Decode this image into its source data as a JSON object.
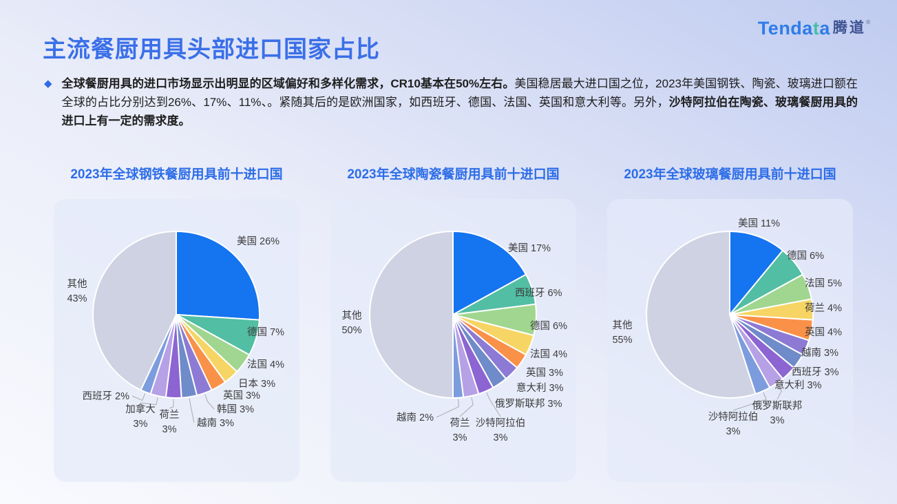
{
  "logo": {
    "brand_en_prefix": "Tenda",
    "brand_en_accent": "t",
    "brand_en_suffix": "a",
    "brand_cn": "腾道",
    "registered_mark": "®"
  },
  "slide": {
    "title": "主流餐厨用具头部进口国家占比",
    "bullet_icon": "◆"
  },
  "intro": {
    "bold_lead": "全球餐厨用具的进口市场显示出明显的区域偏好和多样化需求，CR10基本在50%左右。",
    "normal_mid": "美国稳居最大进口国之位，2023年美国钢铁、陶瓷、玻璃进口额在全球的占比分别达到26%、17%、11%、。紧随其后的是欧洲国家，如西班牙、德国、法国、英国和意大利等。另外，",
    "bold_tail": "沙特阿拉伯在陶瓷、玻璃餐厨用具的进口上有一定的需求度。"
  },
  "chart_data": [
    {
      "type": "pie",
      "title": "2023年全球钢铁餐厨用具前十进口国",
      "unit": "%",
      "start_angle": "top-clockwise",
      "legend": "none",
      "categories": [
        "美国",
        "德国",
        "法国",
        "日本",
        "英国",
        "韩国",
        "越南",
        "荷兰",
        "加拿大",
        "西班牙",
        "其他"
      ],
      "values": [
        26,
        7,
        4,
        3,
        3,
        3,
        3,
        3,
        3,
        2,
        43
      ]
    },
    {
      "type": "pie",
      "title": "2023年全球陶瓷餐厨用具前十进口国",
      "unit": "%",
      "start_angle": "top-clockwise",
      "legend": "none",
      "categories": [
        "美国",
        "西班牙",
        "德国",
        "法国",
        "英国",
        "意大利",
        "俄罗斯联邦",
        "沙特阿拉伯",
        "荷兰",
        "越南",
        "其他"
      ],
      "values": [
        17,
        6,
        6,
        4,
        3,
        3,
        3,
        3,
        3,
        2,
        50
      ]
    },
    {
      "type": "pie",
      "title": "2023年全球玻璃餐厨用具前十进口国",
      "unit": "%",
      "start_angle": "top-clockwise",
      "legend": "none",
      "categories": [
        "美国",
        "德国",
        "法国",
        "荷兰",
        "英国",
        "越南",
        "西班牙",
        "意大利",
        "俄罗斯联邦",
        "沙特阿拉伯",
        "其他"
      ],
      "values": [
        11,
        6,
        5,
        4,
        4,
        3,
        3,
        3,
        3,
        3,
        55
      ]
    }
  ],
  "colors": {
    "slice_palette": [
      "#1574F0",
      "#52BEA3",
      "#A0D68F",
      "#F6D564",
      "#FA9148",
      "#8D7AD4",
      "#6F8BC9",
      "#8C65D2",
      "#B6A0E6",
      "#7C9CDD",
      "#CFD2E2"
    ],
    "title_blue": "#3A6FE8",
    "chart_title_blue": "#2D6DE8",
    "label_gray": "#3C3C3C",
    "leader_gray": "#ABABAB",
    "logo_blue": "#2E7CE8",
    "logo_teal": "#45C0A6",
    "logo_cn_navy": "#3D5290"
  }
}
